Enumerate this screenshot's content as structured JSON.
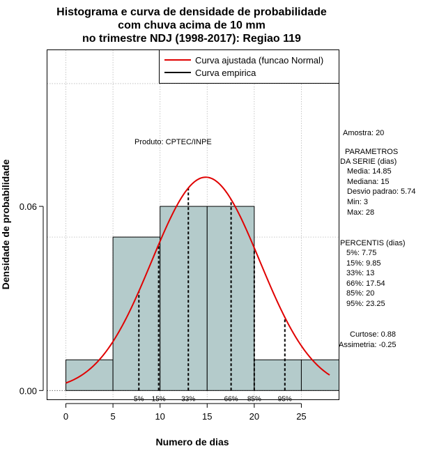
{
  "chart_data": {
    "type": "bar",
    "title_lines": [
      "Histograma e curva de densidade de probabilidade",
      "com chuva acima de 10 mm",
      "no trimestre NDJ (1998-2017): Regiao 119"
    ],
    "xlabel": "Numero de dias",
    "ylabel": "Densidade de probabilidade",
    "xlim": [
      -2,
      29
    ],
    "ylim": [
      -0.003,
      0.111
    ],
    "x_ticks": [
      0,
      5,
      10,
      15,
      20,
      25
    ],
    "y_ticks": [
      0.0,
      0.06
    ],
    "y_tick_labels": [
      "0.00",
      "0.06"
    ],
    "grid_x": [
      0,
      5,
      10,
      15,
      20,
      25
    ],
    "grid_y": [
      0.05,
      0.1
    ],
    "bins": [
      {
        "start": 0,
        "end": 5,
        "density": 0.01
      },
      {
        "start": 5,
        "end": 10,
        "density": 0.05
      },
      {
        "start": 10,
        "end": 15,
        "density": 0.06
      },
      {
        "start": 15,
        "end": 20,
        "density": 0.06
      },
      {
        "start": 20,
        "end": 25,
        "density": 0.01
      },
      {
        "start": 25,
        "end": 29,
        "density": 0.01
      }
    ],
    "normal_curve": {
      "mean": 14.85,
      "sd": 5.74,
      "x_from": 0,
      "x_to": 28,
      "color": "#e00000"
    },
    "percentile_lines": [
      {
        "label": "5%",
        "x": 7.75
      },
      {
        "label": "15%",
        "x": 9.85
      },
      {
        "label": "33%",
        "x": 13
      },
      {
        "label": "66%",
        "x": 17.54
      },
      {
        "label": "85%",
        "x": 20
      },
      {
        "label": "95%",
        "x": 23.25
      }
    ],
    "bar_color": "#b4cbcb",
    "legend": [
      {
        "label": "Curva ajustada (funcao Normal)",
        "color": "#e00000"
      },
      {
        "label": "Curva empirica",
        "color": "#000000"
      }
    ],
    "legend_position": "top-right",
    "product_label": "Produto: CPTEC/INPE"
  },
  "side_panel": {
    "amostra": "Amostra: 20",
    "param_title_1": "PARAMETROS",
    "param_title_2": "DA SERIE (dias)",
    "media": "Media: 14.85",
    "mediana": "Mediana: 15",
    "desvio": "Desvio padrao: 5.74",
    "min": "Min: 3",
    "max": "Max: 28",
    "percentis_title": "PERCENTIS (dias)",
    "p5": "5%: 7.75",
    "p15": "15%: 9.85",
    "p33": "33%: 13",
    "p66": "66%: 17.54",
    "p85": "85%: 20",
    "p95": "95%: 23.25",
    "curtose": "Curtose: 0.88",
    "assimetria": "Assimetria: -0.25"
  }
}
